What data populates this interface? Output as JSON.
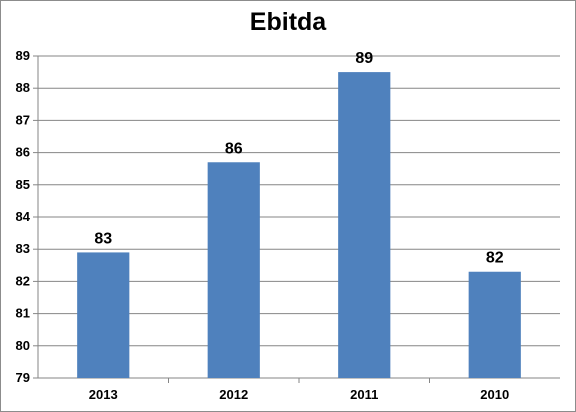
{
  "chart_data": {
    "type": "bar",
    "title": "Ebitda",
    "categories": [
      "2013",
      "2012",
      "2011",
      "2010"
    ],
    "values": [
      82.9,
      85.7,
      88.5,
      82.3
    ],
    "data_labels": [
      "83",
      "86",
      "89",
      "82"
    ],
    "xlabel": "",
    "ylabel": "",
    "ylim": [
      79,
      89
    ],
    "yticks": [
      "79",
      "80",
      "81",
      "82",
      "83",
      "84",
      "85",
      "86",
      "87",
      "88",
      "89"
    ],
    "grid": true,
    "legend": "none",
    "bar_color": "#4f81bd"
  }
}
